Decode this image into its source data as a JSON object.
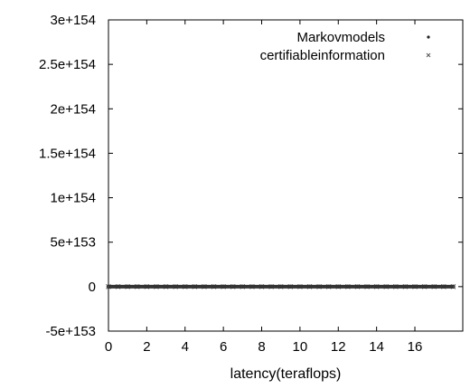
{
  "chart_data": {
    "type": "scatter",
    "title": "",
    "xlabel": "latency(teraflops)",
    "ylabel": "",
    "xlim": [
      0,
      18.5
    ],
    "ylim": [
      -5e+153,
      3e+154
    ],
    "x_ticks": [
      0,
      2,
      4,
      6,
      8,
      10,
      12,
      14,
      16
    ],
    "x_tick_labels": [
      "0",
      "2",
      "4",
      "6",
      "8",
      "10",
      "12",
      "14",
      "16"
    ],
    "y_ticks": [
      -5e+153,
      0,
      5e+153,
      1e+154,
      1.5e+154,
      2e+154,
      2.5e+154,
      3e+154
    ],
    "y_tick_labels": [
      "-5e+153",
      "0",
      "5e+153",
      "1e+154",
      "1.5e+154",
      "2e+154",
      "2.5e+154",
      "3e+154"
    ],
    "grid": false,
    "legend_position": "top-right",
    "series": [
      {
        "name": "Markovmodels",
        "marker": "dot",
        "color": "#222222",
        "x": [
          0,
          0.5,
          1,
          1.5,
          2,
          2.5,
          3,
          3.5,
          4,
          4.5,
          5,
          5.5,
          6,
          6.5,
          7,
          7.5,
          8,
          8.5,
          9,
          9.5,
          10,
          10.5,
          11,
          11.5,
          12,
          12.5,
          13,
          13.5,
          14,
          14.5,
          15,
          15.5,
          16,
          16.5,
          17,
          17.5,
          18
        ],
        "y": [
          0,
          0,
          0,
          0,
          0,
          0,
          0,
          0,
          0,
          0,
          0,
          0,
          0,
          0,
          0,
          0,
          0,
          0,
          0,
          0,
          0,
          0,
          0,
          0,
          0,
          0,
          0,
          0,
          0,
          0,
          0,
          0,
          0,
          0,
          0,
          0,
          0
        ]
      },
      {
        "name": "certifiableinformation",
        "marker": "x",
        "color": "#555555",
        "x": [
          0,
          0.5,
          1,
          1.5,
          2,
          2.5,
          3,
          3.5,
          4,
          4.5,
          5,
          5.5,
          6,
          6.5,
          7,
          7.5,
          8,
          8.5,
          9,
          9.5,
          10,
          10.5,
          11,
          11.5,
          12,
          12.5,
          13,
          13.5,
          14,
          14.5,
          15,
          15.5,
          16,
          16.5,
          17,
          17.5,
          18
        ],
        "y": [
          0,
          0,
          0,
          0,
          0,
          0,
          0,
          0,
          0,
          0,
          0,
          0,
          0,
          0,
          0,
          0,
          0,
          0,
          0,
          0,
          0,
          0,
          0,
          0,
          0,
          0,
          0,
          0,
          0,
          0,
          0,
          0,
          0,
          0,
          0,
          0,
          0
        ]
      }
    ]
  }
}
